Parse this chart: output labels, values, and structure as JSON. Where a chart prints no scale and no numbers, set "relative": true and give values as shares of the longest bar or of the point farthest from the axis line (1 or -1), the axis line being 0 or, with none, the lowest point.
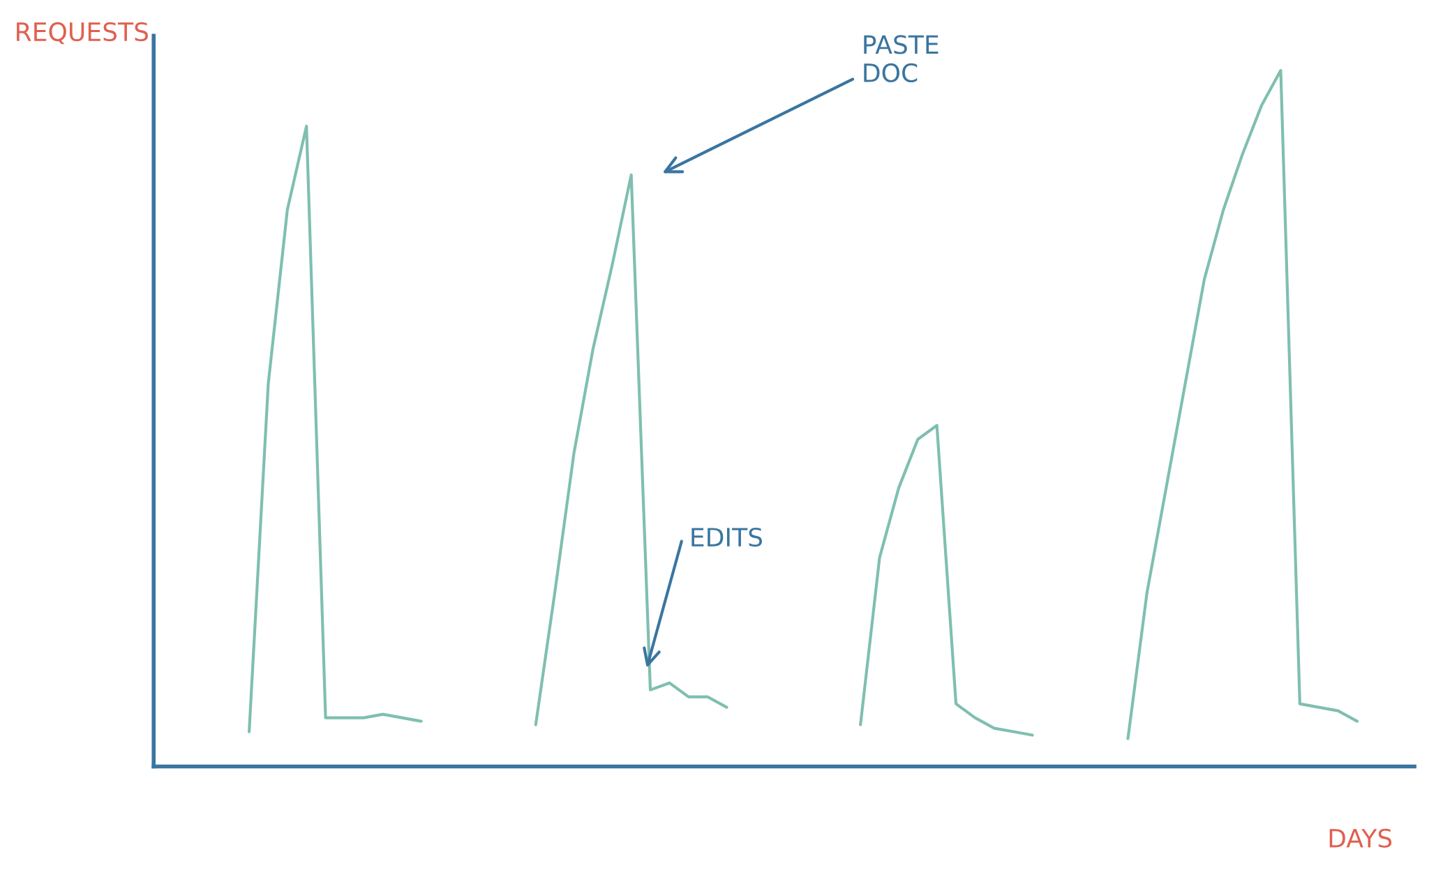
{
  "chart_data": {
    "type": "line",
    "relative": true,
    "xlabel": "DAYS",
    "ylabel": "REQUESTS",
    "annotations": [
      "PASTE\nDOC",
      "EDITS"
    ],
    "categories": [
      null,
      null,
      null,
      null,
      null,
      null,
      null,
      null,
      null,
      null,
      null,
      null,
      null,
      null,
      null,
      null,
      null,
      null,
      null,
      null,
      null,
      null,
      null,
      null,
      null,
      null,
      null,
      null,
      null,
      null,
      null,
      null,
      null,
      null,
      null,
      null,
      null,
      null,
      null,
      null,
      null,
      null,
      null,
      null,
      null,
      null,
      null,
      null,
      null,
      null,
      null,
      null,
      null,
      null,
      null,
      null,
      null,
      null,
      null
    ],
    "series": [
      {
        "color": "#7fbfb0",
        "values": [
          0.05,
          0.55,
          0.8,
          0.92,
          0.07,
          0.07,
          0.07,
          0.075,
          0.07,
          0.065,
          null,
          null,
          null,
          null,
          null,
          null,
          null,
          null,
          null,
          null,
          null,
          null,
          null,
          null,
          null,
          null,
          null,
          null,
          null,
          null,
          null,
          null,
          null,
          null,
          null,
          null,
          null,
          null,
          null,
          null,
          null,
          null,
          null,
          null,
          null,
          null,
          null,
          null,
          null,
          null,
          null,
          null,
          null,
          null,
          null,
          null,
          null,
          null,
          null
        ]
      },
      {
        "color": "#7fbfb0",
        "values": [
          null,
          null,
          null,
          null,
          null,
          null,
          null,
          null,
          null,
          null,
          null,
          null,
          null,
          null,
          null,
          0.06,
          0.25,
          0.45,
          0.6,
          0.72,
          0.85,
          0.11,
          0.12,
          0.1,
          0.1,
          0.085,
          null,
          null,
          null,
          null,
          null,
          null,
          null,
          null,
          null,
          null,
          null,
          null,
          null,
          null,
          null,
          null,
          null,
          null,
          null,
          null,
          null,
          null,
          null,
          null,
          null,
          null,
          null,
          null,
          null,
          null,
          null,
          null,
          null
        ]
      },
      {
        "color": "#7fbfb0",
        "values": [
          null,
          null,
          null,
          null,
          null,
          null,
          null,
          null,
          null,
          null,
          null,
          null,
          null,
          null,
          null,
          null,
          null,
          null,
          null,
          null,
          null,
          null,
          null,
          null,
          null,
          null,
          null,
          null,
          null,
          null,
          null,
          null,
          0.06,
          0.3,
          0.4,
          0.47,
          0.49,
          0.09,
          0.07,
          0.055,
          0.05,
          0.045,
          null,
          null,
          null,
          null,
          null,
          null,
          null,
          null,
          null,
          null,
          null,
          null,
          null,
          null,
          null,
          null,
          null
        ]
      },
      {
        "color": "#7fbfb0",
        "values": [
          null,
          null,
          null,
          null,
          null,
          null,
          null,
          null,
          null,
          null,
          null,
          null,
          null,
          null,
          null,
          null,
          null,
          null,
          null,
          null,
          null,
          null,
          null,
          null,
          null,
          null,
          null,
          null,
          null,
          null,
          null,
          null,
          null,
          null,
          null,
          null,
          null,
          null,
          null,
          null,
          null,
          null,
          null,
          null,
          null,
          null,
          0.04,
          0.25,
          0.4,
          0.55,
          0.7,
          0.8,
          0.88,
          0.95,
          1.0,
          0.09,
          0.085,
          0.08,
          0.065
        ]
      }
    ],
    "legend": false
  }
}
